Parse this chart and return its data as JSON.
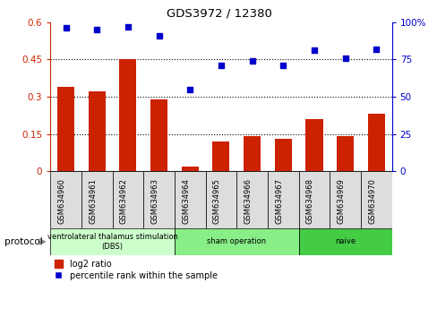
{
  "title": "GDS3972 / 12380",
  "samples": [
    "GSM634960",
    "GSM634961",
    "GSM634962",
    "GSM634963",
    "GSM634964",
    "GSM634965",
    "GSM634966",
    "GSM634967",
    "GSM634968",
    "GSM634969",
    "GSM634970"
  ],
  "log2_ratio": [
    0.34,
    0.32,
    0.45,
    0.29,
    0.02,
    0.12,
    0.14,
    0.13,
    0.21,
    0.14,
    0.23
  ],
  "percentile_rank": [
    96,
    95,
    97,
    91,
    55,
    71,
    74,
    71,
    81,
    76,
    82
  ],
  "bar_color": "#cc2200",
  "scatter_color": "#0000cc",
  "ylim_left": [
    0,
    0.6
  ],
  "ylim_right": [
    0,
    100
  ],
  "yticks_left": [
    0,
    0.15,
    0.3,
    0.45,
    0.6
  ],
  "ytick_labels_left": [
    "0",
    "0.15",
    "0.3",
    "0.45",
    "0.6"
  ],
  "yticks_right": [
    0,
    25,
    50,
    75,
    100
  ],
  "ytick_labels_right": [
    "0",
    "25",
    "50",
    "75",
    "100%"
  ],
  "hlines": [
    0.15,
    0.3,
    0.45
  ],
  "groups": [
    {
      "label": "ventrolateral thalamus stimulation\n(DBS)",
      "start": 0,
      "end": 3,
      "color": "#ccffcc"
    },
    {
      "label": "sham operation",
      "start": 4,
      "end": 7,
      "color": "#88ee88"
    },
    {
      "label": "naive",
      "start": 8,
      "end": 10,
      "color": "#44cc44"
    }
  ],
  "legend_bar_label": "log2 ratio",
  "legend_scatter_label": "percentile rank within the sample",
  "protocol_label": "protocol",
  "bar_width": 0.55,
  "sample_cell_color": "#dddddd"
}
